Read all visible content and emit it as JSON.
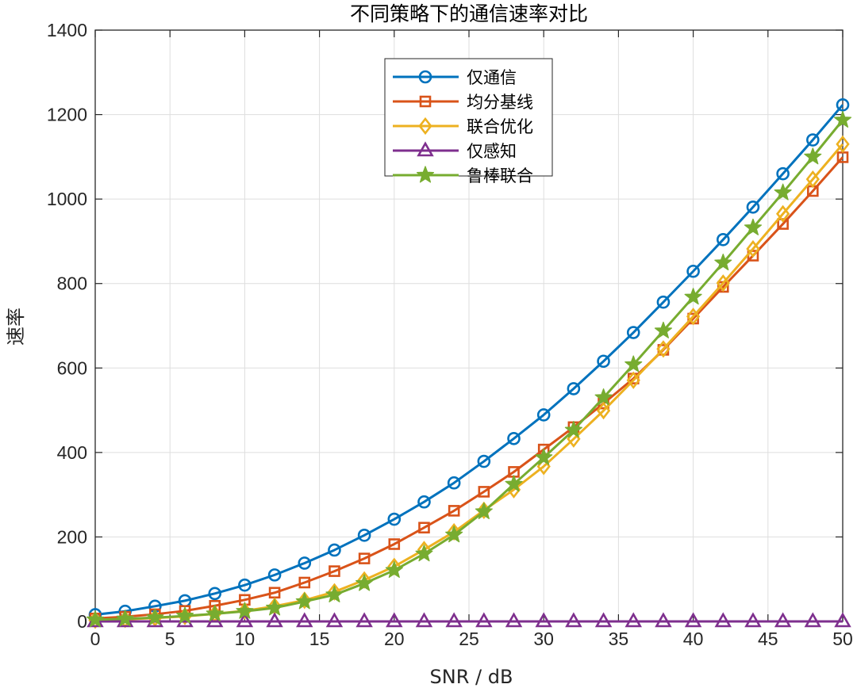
{
  "chart_data": {
    "type": "line",
    "title": "不同策略下的通信速率对比",
    "xlabel": "SNR / dB",
    "ylabel": "速率",
    "xlim": [
      0,
      50
    ],
    "ylim": [
      0,
      1400
    ],
    "x_ticks": [
      0,
      5,
      10,
      15,
      20,
      25,
      30,
      35,
      40,
      45,
      50
    ],
    "y_ticks": [
      0,
      200,
      400,
      600,
      800,
      1000,
      1200,
      1400
    ],
    "grid": true,
    "legend_position": "top-center",
    "x": [
      0,
      2,
      4,
      6,
      8,
      10,
      12,
      14,
      16,
      18,
      20,
      22,
      24,
      26,
      28,
      30,
      32,
      34,
      36,
      38,
      40,
      42,
      44,
      46,
      48,
      50
    ],
    "series": [
      {
        "name": "仅通信",
        "color": "#0072BD",
        "marker": "circle",
        "values": [
          16,
          24,
          36,
          49,
          66,
          86,
          110,
          138,
          169,
          204,
          242,
          283,
          328,
          379,
          433,
          489,
          551,
          616,
          684,
          756,
          829,
          904,
          981,
          1060,
          1140,
          1223
        ]
      },
      {
        "name": "均分基线",
        "color": "#D95319",
        "marker": "square",
        "values": [
          7,
          11,
          17,
          25,
          37,
          51,
          68,
          92,
          119,
          149,
          183,
          222,
          262,
          307,
          354,
          407,
          460,
          516,
          575,
          643,
          717,
          792,
          866,
          941,
          1019,
          1099
        ]
      },
      {
        "name": "联合优化",
        "color": "#EDB120",
        "marker": "diamond",
        "values": [
          3,
          5,
          8,
          12,
          18,
          25,
          36,
          50,
          70,
          98,
          130,
          170,
          212,
          263,
          312,
          367,
          432,
          499,
          571,
          645,
          722,
          801,
          882,
          965,
          1047,
          1130
        ]
      },
      {
        "name": "仅感知",
        "color": "#7E2F8E",
        "marker": "triangle",
        "values": [
          0,
          0,
          0,
          0,
          0,
          0,
          0,
          0,
          0,
          0,
          0,
          0,
          0,
          0,
          0,
          0,
          0,
          0,
          0,
          0,
          0,
          0,
          0,
          0,
          0,
          0
        ]
      },
      {
        "name": "鲁棒联合",
        "color": "#77AC30",
        "marker": "star",
        "values": [
          4,
          6,
          9,
          13,
          18,
          24,
          32,
          47,
          63,
          90,
          121,
          160,
          205,
          260,
          325,
          388,
          453,
          530,
          608,
          688,
          768,
          849,
          932,
          1015,
          1100,
          1187
        ]
      }
    ]
  }
}
